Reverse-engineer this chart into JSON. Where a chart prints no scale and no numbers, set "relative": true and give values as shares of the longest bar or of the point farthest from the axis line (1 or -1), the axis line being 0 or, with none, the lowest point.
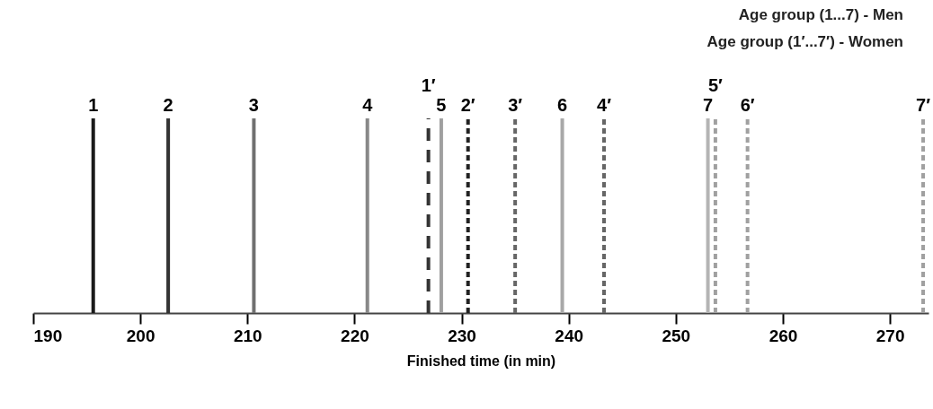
{
  "chart_data": {
    "type": "line",
    "relative": true,
    "xlabel": "Finished time (in min)",
    "xlim": [
      190,
      273.6
    ],
    "xticks": [
      190,
      200,
      210,
      220,
      230,
      240,
      250,
      260,
      270
    ],
    "annotations": [
      "Age group (1...7) - Men",
      "Age group (1′...7′) - Women"
    ],
    "series": [
      {
        "name": "1",
        "color": "#1a1a1a",
        "line_style": "solid",
        "x": [
          195.6,
          195.6
        ],
        "values": [
          0,
          1
        ]
      },
      {
        "name": "2",
        "color": "#333333",
        "line_style": "solid",
        "x": [
          202.6,
          202.6
        ],
        "values": [
          0,
          1
        ]
      },
      {
        "name": "3",
        "color": "#707070",
        "line_style": "solid",
        "x": [
          210.6,
          210.6
        ],
        "values": [
          0,
          1
        ]
      },
      {
        "name": "4",
        "color": "#888888",
        "line_style": "solid",
        "x": [
          221.2,
          221.2
        ],
        "values": [
          0,
          1
        ]
      },
      {
        "name": "5",
        "color": "#a0a0a0",
        "line_style": "solid",
        "x": [
          228.1,
          228.1
        ],
        "values": [
          0,
          1
        ]
      },
      {
        "name": "6",
        "color": "#a8a8a8",
        "line_style": "solid",
        "x": [
          239.4,
          239.4
        ],
        "values": [
          0,
          1
        ]
      },
      {
        "name": "7",
        "color": "#b4b4b4",
        "line_style": "solid",
        "x": [
          253.0,
          253.0
        ],
        "values": [
          0,
          1
        ]
      },
      {
        "name": "1′",
        "color": "#333333",
        "line_style": "dashed",
        "x": [
          226.9,
          226.9
        ],
        "values": [
          0,
          1
        ]
      },
      {
        "name": "2′",
        "color": "#222222",
        "line_style": "dotted",
        "x": [
          230.6,
          230.6
        ],
        "values": [
          0,
          1
        ]
      },
      {
        "name": "3′",
        "color": "#666666",
        "line_style": "dotted",
        "x": [
          235.0,
          235.0
        ],
        "values": [
          0,
          1
        ]
      },
      {
        "name": "4′",
        "color": "#666666",
        "line_style": "dotted",
        "x": [
          243.3,
          243.3
        ],
        "values": [
          0,
          1
        ]
      },
      {
        "name": "5′",
        "color": "#a0a0a0",
        "line_style": "dotted",
        "x": [
          253.7,
          253.7
        ],
        "values": [
          0,
          1
        ]
      },
      {
        "name": "6′",
        "color": "#a0a0a0",
        "line_style": "dotted",
        "x": [
          256.7,
          256.7
        ],
        "values": [
          0,
          1
        ]
      },
      {
        "name": "7′",
        "color": "#a0a0a0",
        "line_style": "dotted",
        "x": [
          273.1,
          273.1
        ],
        "values": [
          0,
          1
        ]
      }
    ]
  }
}
